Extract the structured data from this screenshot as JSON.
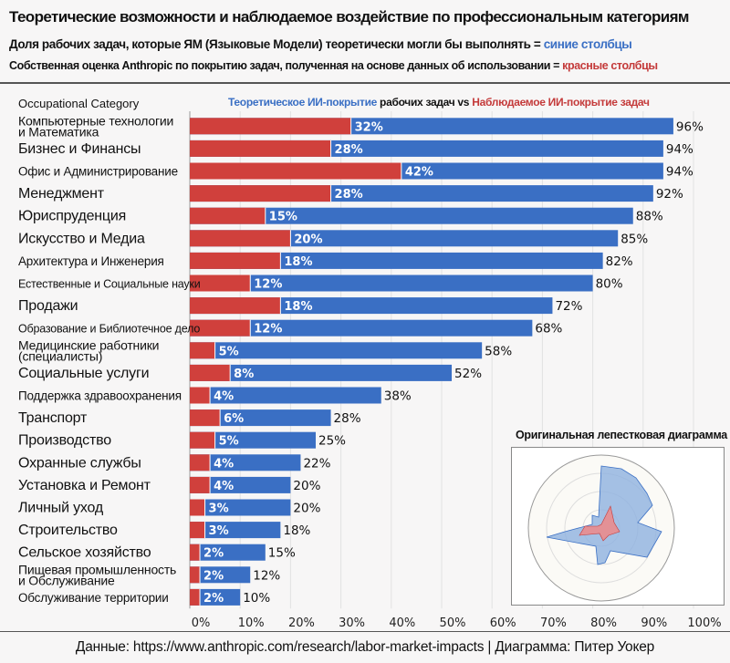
{
  "header": {
    "title": "Теоретические возможности и наблюдаемое воздействие по профессиональным категориям",
    "line1_text": "Доля рабочих задач, которые ЯМ (Языковые Модели) теоретически могли бы выполнять = ",
    "line1_key": "синие столбцы",
    "line2_text": "Собственная оценка Anthropic по покрытию задач, полученная на основе данных об использовании = ",
    "line2_key": "красные столбцы"
  },
  "chart_data": {
    "type": "bar",
    "orientation": "horizontal",
    "category_header": "Occupational Category",
    "title_blue": "Теоретическое ИИ-покрытие",
    "title_mid": " рабочих задач vs ",
    "title_red": "Наблюдаемое ИИ-покрытие задач",
    "xlim": [
      0,
      100
    ],
    "x_ticks": [
      "0%",
      "10%",
      "20%",
      "30%",
      "40%",
      "50%",
      "60%",
      "70%",
      "80%",
      "90%",
      "100%"
    ],
    "grid": true,
    "colors": {
      "theoretical": "#3a6fc4",
      "observed": "#d0403c"
    },
    "categories": [
      "Компьютерные технологии и Математика",
      "Бизнес и Финансы",
      "Офис и Администрирование",
      "Менеджмент",
      "Юриспруденция",
      "Искусство и Медиа",
      "Архитектура и Инженерия",
      "Естественные и Социальные науки",
      "Продажи",
      "Образование и Библиотечное дело",
      "Медицинские работники (специалисты)",
      "Социальные услуги",
      "Поддержка здравоохранения",
      "Транспорт",
      "Производство",
      "Охранные службы",
      "Установка и Ремонт",
      "Личный уход",
      "Строительство",
      "Сельское хозяйство",
      "Пищевая промышленность и Обслуживание",
      "Обслуживание территории"
    ],
    "series": [
      {
        "key": "theoretical",
        "values": [
          96,
          94,
          94,
          92,
          88,
          85,
          82,
          80,
          72,
          68,
          58,
          52,
          38,
          28,
          25,
          22,
          20,
          20,
          18,
          15,
          12,
          10
        ]
      },
      {
        "key": "observed",
        "values": [
          32,
          28,
          42,
          28,
          15,
          20,
          18,
          12,
          18,
          12,
          5,
          8,
          4,
          6,
          5,
          4,
          4,
          3,
          3,
          2,
          2,
          2
        ]
      }
    ]
  },
  "inset": {
    "title": "Оригинальная лепестковая диаграмма"
  },
  "footer": {
    "prefix": "Данные: ",
    "link": "https://www.anthropic.com/research/labor-market-impacts",
    "suffix": " | Диаграмма: Питер Уокер"
  }
}
